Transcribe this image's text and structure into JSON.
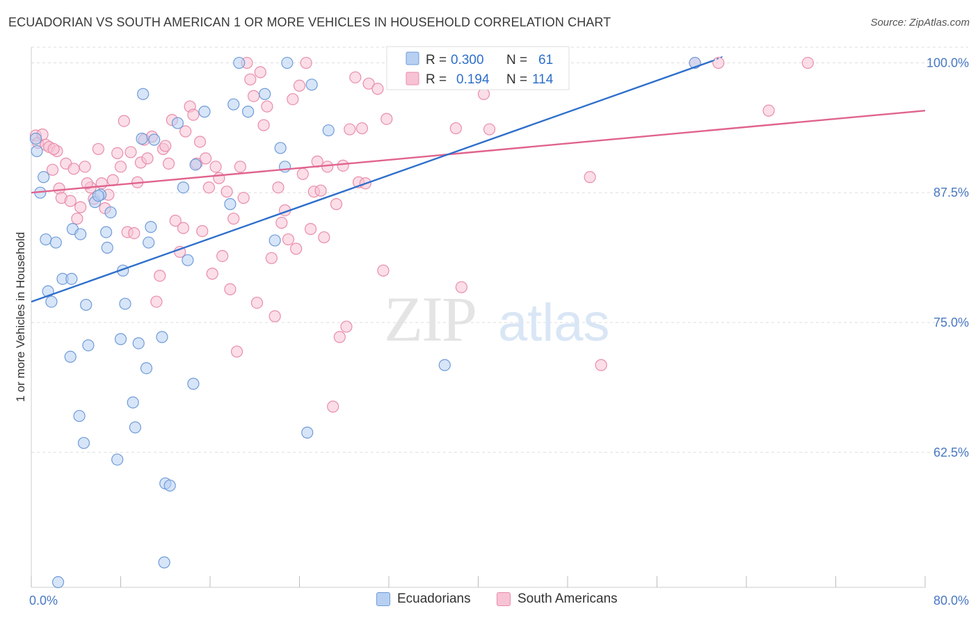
{
  "header": {
    "title": "ECUADORIAN VS SOUTH AMERICAN 1 OR MORE VEHICLES IN HOUSEHOLD CORRELATION CHART",
    "source": "Source: ZipAtlas.com"
  },
  "watermark": {
    "zip": "ZIP",
    "atlas": "atlas"
  },
  "legend": {
    "rows": [
      {
        "r_label": "R =",
        "r_value": "0.300",
        "n_label": "N =",
        "n_value": "61"
      },
      {
        "r_label": "R =",
        "r_value": "0.194",
        "n_label": "N =",
        "n_value": "114"
      }
    ]
  },
  "colors": {
    "blue_fill": "#b7d0f2",
    "blue_stroke": "#6f9bd9",
    "blue_line": "#2e6fcb",
    "pink_fill": "#f7c3d4",
    "pink_stroke": "#e98cab",
    "pink_line": "#e0638e",
    "grid": "#dddddd",
    "axis_text": "#4a78c2"
  },
  "chart_data": {
    "type": "scatter",
    "title": "ECUADORIAN VS SOUTH AMERICAN 1 OR MORE VEHICLES IN HOUSEHOLD CORRELATION CHART",
    "xlabel": "",
    "ylabel": "1 or more Vehicles in Household",
    "xlim": [
      0,
      80
    ],
    "ylim": [
      49.5,
      101.5
    ],
    "x_tick_labels": [
      "0.0%",
      "80.0%"
    ],
    "y_ticks": [
      62.5,
      75.0,
      87.5,
      100.0
    ],
    "y_tick_labels": [
      "62.5%",
      "75.0%",
      "87.5%",
      "100.0%"
    ],
    "grid": true,
    "legend_position": "bottom",
    "series": [
      {
        "name": "Ecuadorians",
        "r": 0.3,
        "n": 61,
        "trend": {
          "x": [
            0,
            61
          ],
          "y": [
            77.0,
            100.2
          ]
        },
        "points": [
          [
            0.4,
            92.7
          ],
          [
            0.5,
            91.5
          ],
          [
            0.8,
            87.5
          ],
          [
            1.1,
            89.0
          ],
          [
            1.3,
            83.0
          ],
          [
            1.5,
            78.0
          ],
          [
            1.8,
            77.0
          ],
          [
            2.2,
            82.7
          ],
          [
            2.8,
            79.2
          ],
          [
            3.6,
            79.2
          ],
          [
            3.7,
            84.0
          ],
          [
            4.4,
            83.5
          ],
          [
            4.9,
            76.7
          ],
          [
            5.1,
            72.8
          ],
          [
            5.7,
            86.6
          ],
          [
            6.2,
            87.3
          ],
          [
            6.7,
            83.7
          ],
          [
            6.8,
            82.2
          ],
          [
            7.1,
            85.6
          ],
          [
            8.0,
            73.4
          ],
          [
            8.2,
            80.0
          ],
          [
            8.4,
            76.8
          ],
          [
            9.1,
            67.3
          ],
          [
            9.3,
            64.9
          ],
          [
            9.6,
            73.0
          ],
          [
            9.9,
            92.7
          ],
          [
            10.0,
            97.0
          ],
          [
            10.3,
            70.6
          ],
          [
            10.5,
            82.7
          ],
          [
            10.7,
            84.2
          ],
          [
            11.0,
            92.6
          ],
          [
            11.7,
            73.6
          ],
          [
            12.0,
            59.5
          ],
          [
            12.4,
            59.3
          ],
          [
            13.1,
            94.2
          ],
          [
            13.6,
            88.0
          ],
          [
            14.0,
            81.0
          ],
          [
            14.5,
            69.1
          ],
          [
            14.7,
            90.2
          ],
          [
            15.5,
            95.3
          ],
          [
            17.8,
            86.4
          ],
          [
            18.1,
            96.0
          ],
          [
            18.6,
            100.0
          ],
          [
            19.4,
            95.3
          ],
          [
            20.9,
            97.0
          ],
          [
            21.8,
            82.9
          ],
          [
            22.3,
            91.8
          ],
          [
            22.9,
            100.0
          ],
          [
            22.7,
            90.0
          ],
          [
            24.7,
            64.4
          ],
          [
            25.1,
            97.9
          ],
          [
            26.6,
            93.5
          ],
          [
            37.0,
            70.9
          ],
          [
            59.4,
            100.0
          ],
          [
            3.5,
            71.7
          ],
          [
            4.3,
            66.0
          ],
          [
            4.7,
            63.4
          ],
          [
            7.7,
            61.8
          ],
          [
            11.9,
            51.9
          ],
          [
            2.4,
            50.0
          ],
          [
            6.0,
            87.2
          ]
        ]
      },
      {
        "name": "South Americans",
        "r": 0.194,
        "n": 114,
        "trend": {
          "x": [
            0,
            80
          ],
          "y": [
            87.5,
            95.4
          ]
        },
        "points": [
          [
            0.4,
            93.0
          ],
          [
            0.6,
            92.3
          ],
          [
            1.0,
            93.1
          ],
          [
            1.3,
            92.1
          ],
          [
            1.6,
            91.9
          ],
          [
            1.9,
            89.7
          ],
          [
            2.3,
            91.5
          ],
          [
            2.5,
            87.9
          ],
          [
            2.7,
            87.0
          ],
          [
            3.1,
            90.3
          ],
          [
            3.5,
            86.7
          ],
          [
            3.8,
            89.8
          ],
          [
            4.1,
            85.0
          ],
          [
            4.4,
            86.1
          ],
          [
            4.8,
            90.0
          ],
          [
            5.3,
            88.0
          ],
          [
            5.6,
            86.9
          ],
          [
            6.0,
            91.7
          ],
          [
            6.3,
            88.4
          ],
          [
            6.6,
            86.0
          ],
          [
            6.9,
            87.3
          ],
          [
            7.3,
            88.7
          ],
          [
            7.7,
            91.3
          ],
          [
            8.0,
            90.0
          ],
          [
            8.3,
            94.4
          ],
          [
            8.6,
            83.7
          ],
          [
            8.9,
            91.4
          ],
          [
            9.2,
            83.6
          ],
          [
            9.5,
            88.5
          ],
          [
            9.8,
            90.4
          ],
          [
            10.1,
            92.6
          ],
          [
            10.4,
            90.8
          ],
          [
            10.8,
            92.9
          ],
          [
            11.2,
            77.0
          ],
          [
            11.5,
            79.5
          ],
          [
            11.8,
            91.7
          ],
          [
            12.0,
            92.0
          ],
          [
            12.3,
            90.3
          ],
          [
            12.6,
            94.5
          ],
          [
            12.9,
            84.8
          ],
          [
            13.3,
            81.8
          ],
          [
            13.6,
            84.1
          ],
          [
            13.8,
            93.4
          ],
          [
            14.2,
            95.8
          ],
          [
            14.5,
            95.0
          ],
          [
            14.8,
            90.3
          ],
          [
            15.1,
            92.4
          ],
          [
            15.3,
            83.8
          ],
          [
            15.6,
            90.8
          ],
          [
            15.9,
            88.0
          ],
          [
            16.2,
            79.7
          ],
          [
            16.5,
            90.0
          ],
          [
            16.8,
            88.9
          ],
          [
            17.1,
            81.4
          ],
          [
            17.5,
            87.6
          ],
          [
            17.8,
            78.2
          ],
          [
            18.1,
            85.0
          ],
          [
            18.4,
            72.2
          ],
          [
            18.7,
            90.0
          ],
          [
            19.0,
            87.0
          ],
          [
            19.3,
            100.0
          ],
          [
            19.6,
            98.4
          ],
          [
            19.9,
            96.8
          ],
          [
            20.2,
            76.9
          ],
          [
            20.5,
            99.1
          ],
          [
            20.8,
            94.0
          ],
          [
            21.1,
            95.8
          ],
          [
            21.5,
            81.2
          ],
          [
            21.8,
            75.6
          ],
          [
            22.1,
            88.0
          ],
          [
            22.4,
            84.6
          ],
          [
            22.7,
            85.8
          ],
          [
            23.0,
            83.0
          ],
          [
            23.4,
            96.5
          ],
          [
            23.7,
            82.1
          ],
          [
            24.0,
            97.8
          ],
          [
            24.3,
            89.3
          ],
          [
            24.6,
            100.0
          ],
          [
            25.0,
            84.0
          ],
          [
            25.3,
            87.6
          ],
          [
            25.6,
            90.5
          ],
          [
            25.9,
            87.7
          ],
          [
            26.2,
            83.2
          ],
          [
            26.5,
            90.0
          ],
          [
            27.0,
            66.9
          ],
          [
            27.3,
            86.4
          ],
          [
            27.6,
            73.6
          ],
          [
            27.9,
            90.1
          ],
          [
            28.2,
            74.6
          ],
          [
            28.5,
            93.6
          ],
          [
            29.0,
            98.6
          ],
          [
            29.3,
            88.5
          ],
          [
            29.6,
            93.7
          ],
          [
            29.9,
            88.4
          ],
          [
            30.2,
            98.0
          ],
          [
            31.0,
            97.5
          ],
          [
            31.5,
            80.0
          ],
          [
            31.8,
            94.6
          ],
          [
            32.5,
            100.0
          ],
          [
            34.0,
            99.0
          ],
          [
            36.0,
            100.0
          ],
          [
            38.0,
            93.7
          ],
          [
            38.5,
            78.4
          ],
          [
            40.5,
            97.0
          ],
          [
            41.0,
            93.6
          ],
          [
            43.0,
            100.0
          ],
          [
            50.0,
            89.0
          ],
          [
            51.0,
            70.9
          ],
          [
            59.4,
            100.0
          ],
          [
            61.5,
            100.0
          ],
          [
            66.0,
            95.4
          ],
          [
            69.5,
            100.0
          ],
          [
            2.0,
            91.7
          ],
          [
            5.0,
            88.4
          ]
        ]
      }
    ]
  },
  "bottom_legend": {
    "item1": "Ecuadorians",
    "item2": "South Americans"
  },
  "axes": {
    "x_left_label": "0.0%",
    "x_right_label": "80.0%",
    "y_title": "1 or more Vehicles in Household"
  }
}
